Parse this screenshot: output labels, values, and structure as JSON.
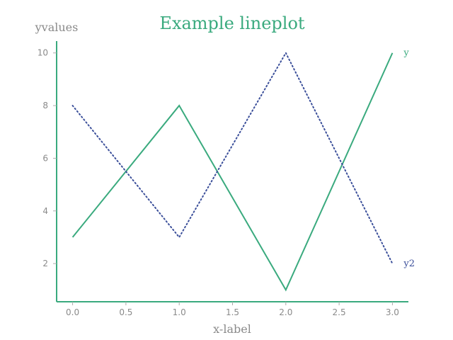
{
  "colors": {
    "title": "#3aaa7e",
    "axis": "#3aaa7e",
    "tick": "#aaaaaa",
    "text": "#8a8a8a"
  },
  "chart_data": {
    "type": "line",
    "title": "Example lineplot",
    "xlabel": "x-label",
    "ylabel": "yvalues",
    "x": [
      0,
      1,
      2,
      3
    ],
    "xlim": [
      -0.15,
      3.15
    ],
    "ylim": [
      0.55,
      10.45
    ],
    "xticks": [
      "0.0",
      "0.5",
      "1.0",
      "1.5",
      "2.0",
      "2.5",
      "3.0"
    ],
    "yticks": [
      "2",
      "4",
      "6",
      "8",
      "10"
    ],
    "grid": false,
    "legend": "inline labels at line ends",
    "series": [
      {
        "name": "y",
        "values": [
          3,
          8,
          1,
          10
        ],
        "color": "#3aaa7e",
        "style": "solid"
      },
      {
        "name": "y2",
        "values": [
          8,
          3,
          10,
          2
        ],
        "color": "#3b4f9a",
        "style": "dotted"
      }
    ]
  }
}
